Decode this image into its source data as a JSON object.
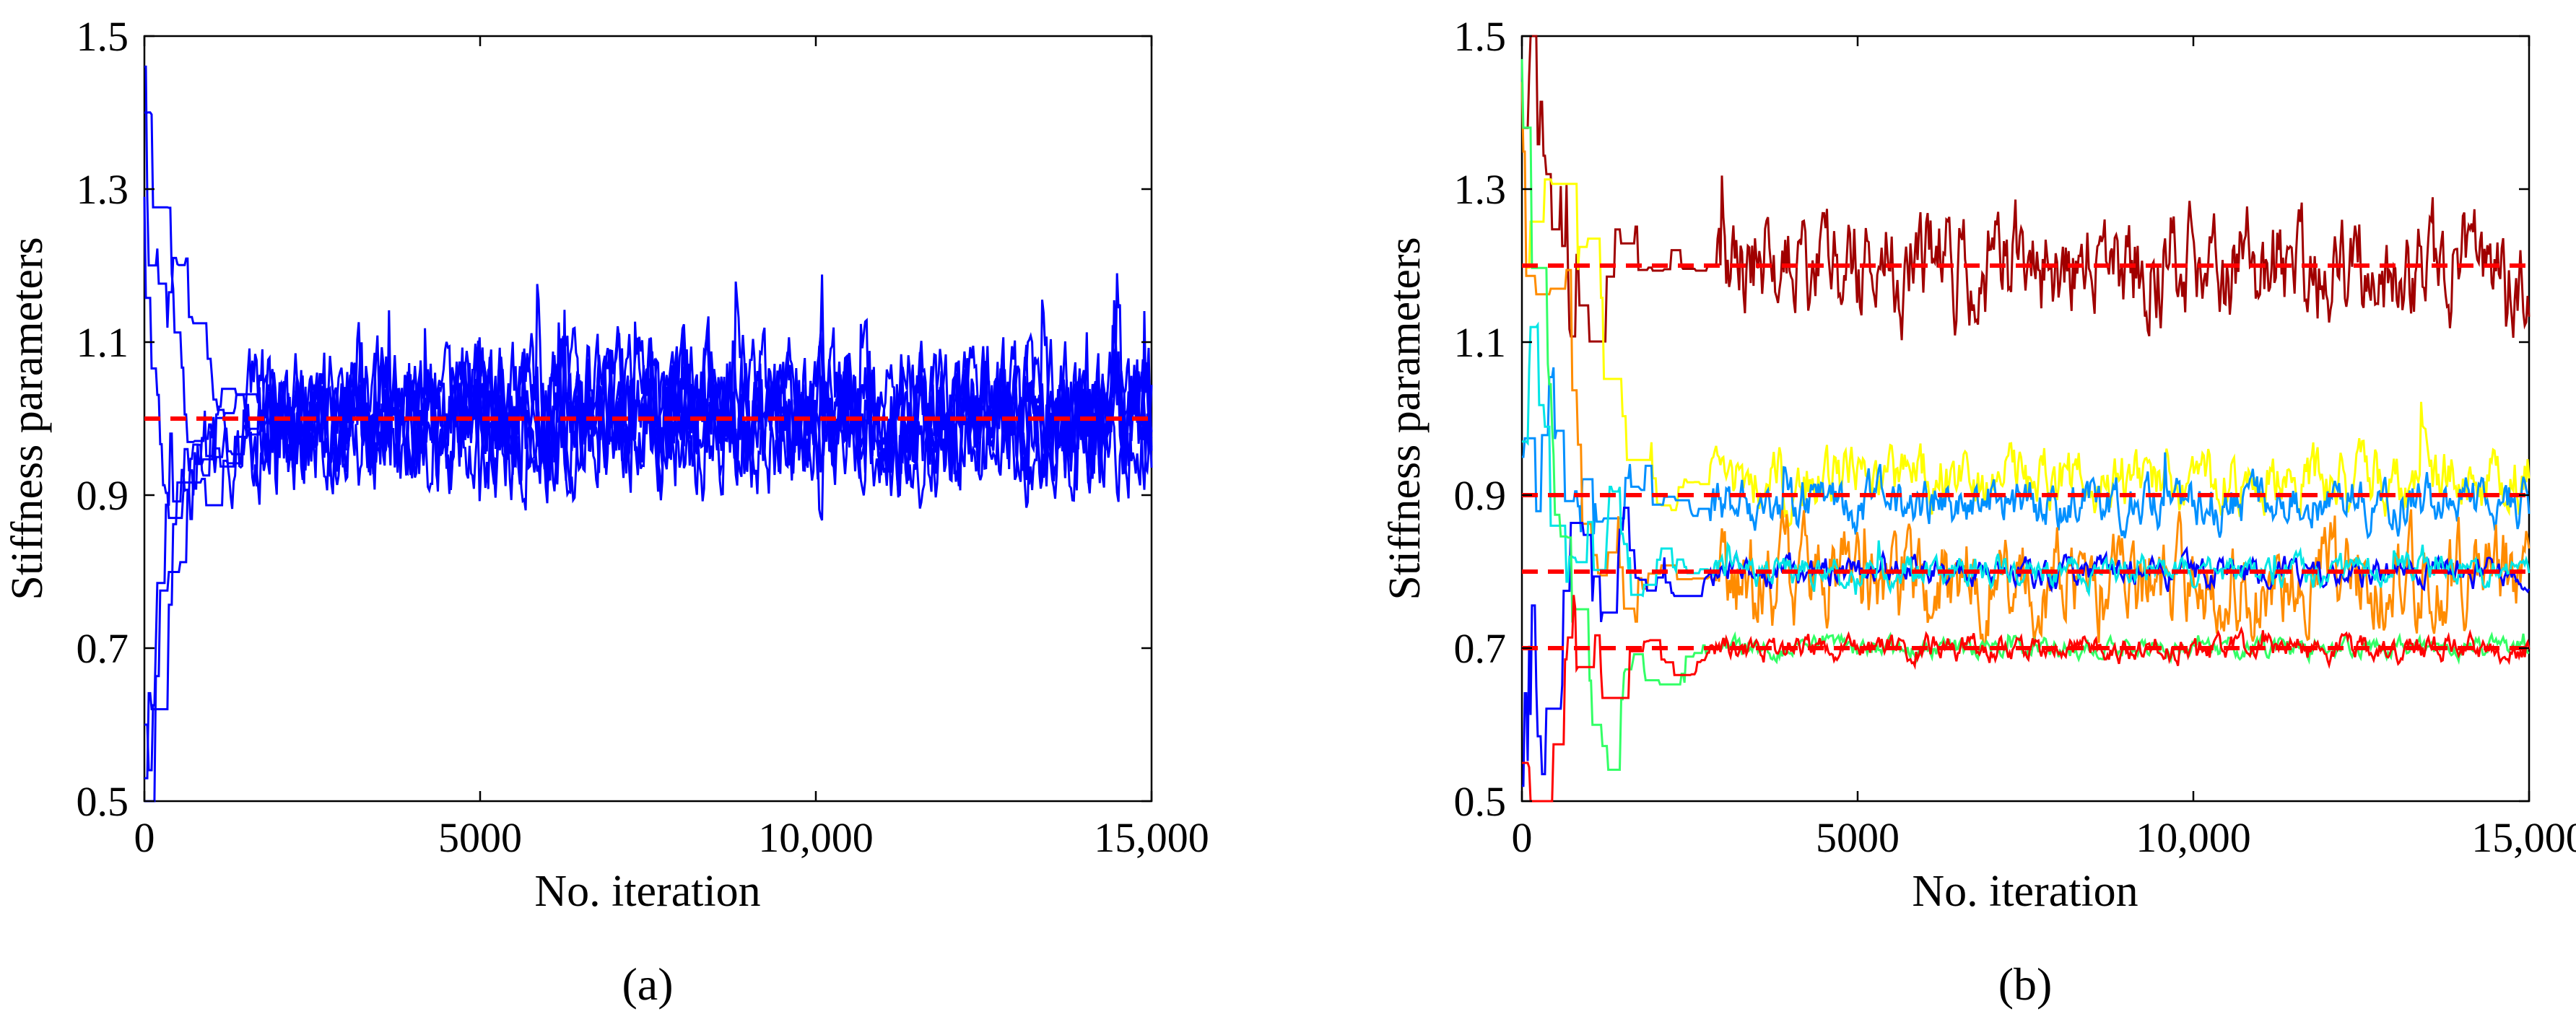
{
  "chart_data": [
    {
      "type": "line",
      "caption": "(a)",
      "xlabel": "No. iteration",
      "ylabel": "Stiffness parameters",
      "xlim": [
        0,
        15000
      ],
      "ylim": [
        0.5,
        1.5
      ],
      "xticks": [
        0,
        5000,
        10000,
        15000
      ],
      "xtick_labels": [
        "0",
        "5000",
        "10,000",
        "15,000"
      ],
      "yticks": [
        0.5,
        0.7,
        0.9,
        1.1,
        1.3,
        1.5
      ],
      "ytick_labels": [
        "0.5",
        "0.7",
        "0.9",
        "1.1",
        "1.3",
        "1.5"
      ],
      "grid": false,
      "reference_lines": [
        {
          "y": 1.0,
          "color": "#ff0000",
          "style": "dashed"
        }
      ],
      "series": [
        {
          "color": "#0000ff",
          "start": 1.4,
          "target": 1.0,
          "burn_in": 1800,
          "noise": 0.05,
          "seed": 11
        },
        {
          "color": "#0000ff",
          "start": 0.5,
          "target": 1.0,
          "burn_in": 1600,
          "noise": 0.05,
          "seed": 23
        },
        {
          "color": "#0000ff",
          "start": 1.46,
          "target": 1.0,
          "burn_in": 1200,
          "noise": 0.05,
          "seed": 37
        },
        {
          "color": "#0000ff",
          "start": 0.53,
          "target": 1.0,
          "burn_in": 1700,
          "noise": 0.05,
          "seed": 41
        },
        {
          "color": "#0000ff",
          "start": 1.29,
          "target": 1.0,
          "burn_in": 1500,
          "noise": 0.05,
          "seed": 53
        },
        {
          "color": "#0000ff",
          "start": 0.6,
          "target": 1.0,
          "burn_in": 1700,
          "noise": 0.05,
          "seed": 67
        }
      ]
    },
    {
      "type": "line",
      "caption": "(b)",
      "xlabel": "No. iteration",
      "ylabel": "Stiffness parameters",
      "xlim": [
        0,
        15000
      ],
      "ylim": [
        0.5,
        1.5
      ],
      "xticks": [
        0,
        5000,
        10000,
        15000
      ],
      "xtick_labels": [
        "0",
        "5000",
        "10,000",
        "15,000"
      ],
      "yticks": [
        0.5,
        0.7,
        0.9,
        1.1,
        1.3,
        1.5
      ],
      "ytick_labels": [
        "0.5",
        "0.7",
        "0.9",
        "1.1",
        "1.3",
        "1.5"
      ],
      "grid": false,
      "reference_lines": [
        {
          "y": 1.2,
          "color": "#ff0000",
          "style": "dashed"
        },
        {
          "y": 0.9,
          "color": "#ff0000",
          "style": "dashed"
        },
        {
          "y": 0.8,
          "color": "#ff0000",
          "style": "dashed"
        },
        {
          "y": 0.7,
          "color": "#ff0000",
          "style": "dashed"
        }
      ],
      "series": [
        {
          "color": "#a00000",
          "start": 1.38,
          "target": 1.2,
          "burn_in": 2900,
          "noise": 0.045,
          "seed": 101
        },
        {
          "color": "#ffff00",
          "start": 1.2,
          "target": 0.92,
          "burn_in": 2800,
          "noise": 0.025,
          "seed": 103
        },
        {
          "color": "#0090ff",
          "start": 0.95,
          "target": 0.89,
          "burn_in": 2800,
          "noise": 0.02,
          "seed": 107
        },
        {
          "color": "#ff8c00",
          "start": 1.44,
          "target": 0.79,
          "burn_in": 2900,
          "noise": 0.04,
          "seed": 109
        },
        {
          "color": "#0000ff",
          "start": 0.52,
          "target": 0.8,
          "burn_in": 2800,
          "noise": 0.012,
          "seed": 113
        },
        {
          "color": "#00e5e5",
          "start": 0.97,
          "target": 0.8,
          "burn_in": 2800,
          "noise": 0.012,
          "seed": 127
        },
        {
          "color": "#33ff66",
          "start": 1.47,
          "target": 0.7,
          "burn_in": 3000,
          "noise": 0.008,
          "seed": 131
        },
        {
          "color": "#ff0000",
          "start": 0.55,
          "target": 0.7,
          "burn_in": 2800,
          "noise": 0.01,
          "seed": 137
        }
      ]
    }
  ]
}
